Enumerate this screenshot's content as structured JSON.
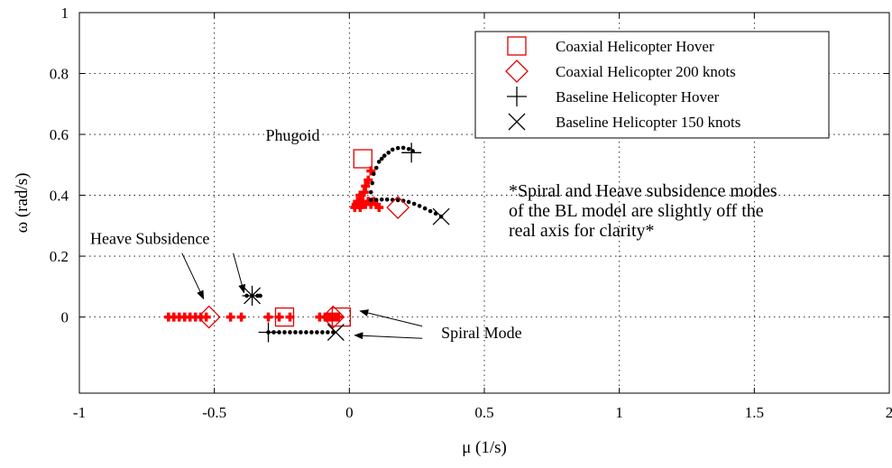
{
  "chart_data": {
    "type": "scatter",
    "title": "",
    "xlabel": "μ (1/s)",
    "ylabel": "ω (rad/s)",
    "xlim": [
      -1,
      2
    ],
    "ylim": [
      -0.25,
      1
    ],
    "xticks": [
      -1,
      -0.5,
      0,
      0.5,
      1,
      1.5,
      2
    ],
    "xtick_labels": [
      "-1",
      "-0.5",
      "0",
      "0.5",
      "1",
      "1.5",
      "2"
    ],
    "yticks": [
      0,
      0.2,
      0.4,
      0.6,
      0.8,
      1
    ],
    "ytick_labels": [
      "0",
      "0.2",
      "0.4",
      "0.6",
      "0.8",
      "1"
    ],
    "grid": true,
    "legend_position": "top-right",
    "series": [
      {
        "name": "Coaxial Helicopter Hover",
        "marker": "square",
        "color": "#e00000",
        "x": [
          0.05,
          -0.24,
          -0.03
        ],
        "y": [
          0.52,
          0.0,
          0.0
        ]
      },
      {
        "name": "Coaxial Helicopter 200 knots",
        "marker": "diamond",
        "color": "#e00000",
        "x": [
          0.18,
          -0.52,
          -0.06
        ],
        "y": [
          0.36,
          0.0,
          0.0
        ]
      },
      {
        "name": "Baseline Helicopter Hover",
        "marker": "plus",
        "color": "#000000",
        "x": [
          0.23,
          -0.3,
          -0.36
        ],
        "y": [
          0.54,
          -0.05,
          0.07
        ]
      },
      {
        "name": "Baseline Helicopter 150 knots",
        "marker": "x",
        "color": "#000000",
        "x": [
          0.34,
          -0.05,
          -0.36
        ],
        "y": [
          0.33,
          -0.05,
          0.07
        ]
      }
    ],
    "locus_red": {
      "color": "#ff0000",
      "x": [
        0.02,
        0.025,
        0.03,
        0.04,
        0.045,
        0.05,
        0.06,
        0.07,
        0.08,
        0.09,
        0.1,
        0.11,
        0.06,
        0.07,
        0.08,
        0.04,
        0.055,
        -0.67,
        -0.65,
        -0.63,
        -0.61,
        -0.59,
        -0.57,
        -0.55,
        -0.53,
        -0.44,
        -0.4,
        -0.3,
        -0.26,
        -0.22,
        -0.11,
        -0.09,
        -0.08,
        -0.07,
        -0.06,
        -0.05,
        -0.04
      ],
      "y": [
        0.36,
        0.37,
        0.38,
        0.36,
        0.37,
        0.38,
        0.37,
        0.38,
        0.37,
        0.38,
        0.37,
        0.36,
        0.43,
        0.45,
        0.48,
        0.4,
        0.41,
        0,
        0,
        0,
        0,
        0,
        0,
        0,
        0,
        0,
        0,
        0,
        0,
        0,
        0,
        0,
        0,
        0,
        0,
        0,
        0
      ]
    },
    "locus_black_phugoid": {
      "color": "#000000",
      "x": [
        0.08,
        0.085,
        0.09,
        0.1,
        0.11,
        0.12,
        0.13,
        0.145,
        0.16,
        0.18,
        0.2,
        0.22,
        0.235
      ],
      "y": [
        0.41,
        0.44,
        0.47,
        0.49,
        0.51,
        0.52,
        0.53,
        0.54,
        0.55,
        0.555,
        0.556,
        0.552,
        0.545
      ]
    },
    "locus_black_branch": {
      "color": "#000000",
      "x": [
        0.08,
        0.1,
        0.12,
        0.14,
        0.16,
        0.18,
        0.2,
        0.22,
        0.24,
        0.26,
        0.28,
        0.3,
        0.32,
        0.34
      ],
      "y": [
        0.385,
        0.385,
        0.386,
        0.386,
        0.385,
        0.384,
        0.382,
        0.378,
        0.372,
        0.365,
        0.357,
        0.348,
        0.34,
        0.33
      ]
    },
    "locus_black_spiral": {
      "color": "#000000",
      "x": [
        -0.3,
        -0.28,
        -0.26,
        -0.24,
        -0.22,
        -0.2,
        -0.18,
        -0.16,
        -0.14,
        -0.12,
        -0.1,
        -0.08,
        -0.06
      ],
      "y": [
        -0.05,
        -0.05,
        -0.05,
        -0.05,
        -0.05,
        -0.05,
        -0.05,
        -0.05,
        -0.05,
        -0.05,
        -0.05,
        -0.05,
        -0.05
      ]
    },
    "locus_black_heave": {
      "color": "#000000",
      "x": [
        -0.38,
        -0.36,
        -0.34,
        -0.33
      ],
      "y": [
        0.07,
        0.07,
        0.07,
        0.07
      ]
    },
    "annotations": {
      "phugoid": {
        "text": "Phugoid",
        "x": -0.31,
        "y": 0.58
      },
      "heave": {
        "text": "Heave Subsidence",
        "x": -0.96,
        "y": 0.24
      },
      "heave_arrows": [
        {
          "from": [
            -0.62,
            0.21
          ],
          "to": [
            -0.54,
            0.06
          ]
        },
        {
          "from": [
            -0.43,
            0.21
          ],
          "to": [
            -0.39,
            0.08
          ]
        }
      ],
      "spiral": {
        "text": "Spiral Mode",
        "x": 0.34,
        "y": -0.07
      },
      "spiral_arrows": [
        {
          "from": [
            0.27,
            -0.03
          ],
          "to": [
            0.04,
            0.02
          ]
        },
        {
          "from": [
            0.27,
            -0.07
          ],
          "to": [
            0.02,
            -0.06
          ]
        }
      ],
      "note_lines": [
        "*Spiral and Heave subsidence modes",
        "of the BL model are slightly off the",
        "real axis for clarity*"
      ],
      "note": {
        "x": 0.59,
        "y": 0.33
      }
    }
  }
}
